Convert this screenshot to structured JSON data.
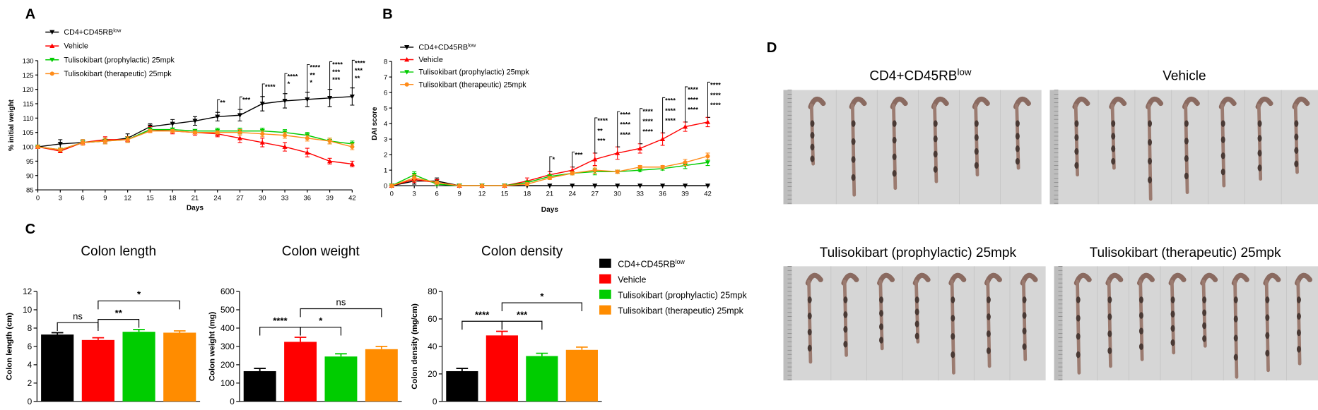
{
  "chart_data": [
    {
      "type": "line",
      "panel_label": "A",
      "ylabel": "% initial weight",
      "xlabel": "Days",
      "x": [
        0,
        3,
        6,
        9,
        12,
        15,
        18,
        21,
        24,
        27,
        30,
        33,
        36,
        39,
        42
      ],
      "xlim": [
        0,
        42
      ],
      "xticks": [
        0,
        3,
        6,
        9,
        12,
        15,
        18,
        21,
        24,
        27,
        30,
        33,
        36,
        39,
        42
      ],
      "ylim": [
        85,
        130
      ],
      "yticks": [
        85,
        90,
        95,
        100,
        105,
        110,
        115,
        120,
        125,
        130
      ],
      "series": [
        {
          "name": {
            "text": "CD4+CD45RB",
            "sup": "low"
          },
          "color": "#000000",
          "marker": "triangle-down",
          "values": [
            100,
            101,
            101.5,
            102,
            103,
            107,
            108,
            109,
            110.5,
            111,
            115,
            116,
            116.5,
            117,
            117.5
          ],
          "errors": [
            0,
            1.5,
            1,
            1,
            1.5,
            1,
            1.5,
            1.5,
            1.5,
            2,
            2.5,
            2.5,
            2.5,
            3,
            3
          ]
        },
        {
          "name": "Vehicle",
          "color": "#ff0000",
          "marker": "triangle-up",
          "values": [
            100,
            98.5,
            101.5,
            102.5,
            102.5,
            106,
            105.5,
            105,
            104.5,
            103,
            101.5,
            100,
            98,
            95,
            94
          ],
          "errors": [
            0,
            0.5,
            1,
            1,
            1,
            1,
            1,
            1,
            1,
            1.5,
            1.5,
            1.5,
            1.5,
            1,
            1
          ]
        },
        {
          "name": "Tulisokibart  (prophylactic) 25mpk",
          "color": "#00cc00",
          "marker": "triangle-down",
          "values": [
            100,
            99,
            101.5,
            102,
            102.5,
            106,
            106,
            105.5,
            105.5,
            105.5,
            105.5,
            105,
            104,
            102,
            101
          ],
          "errors": [
            0,
            0.5,
            1,
            1,
            1,
            0.5,
            0.5,
            0.5,
            1,
            1,
            1,
            1,
            1,
            1,
            1
          ]
        },
        {
          "name": "Tulisokibart (therapeutic) 25mpk",
          "color": "#ff8c1a",
          "marker": "circle",
          "values": [
            100,
            99,
            101.5,
            102,
            102.5,
            105.5,
            105.5,
            105,
            105,
            105,
            104.5,
            104,
            103,
            102,
            100
          ],
          "errors": [
            0,
            0.5,
            1,
            1,
            1,
            0.5,
            0.5,
            0.5,
            0.5,
            1,
            1,
            1,
            1,
            1,
            1
          ]
        }
      ],
      "significance_colors": [
        "#000000",
        "#00cc00",
        "#ff8c1a"
      ],
      "significance": [
        {
          "x": 24,
          "marks": [
            "**"
          ]
        },
        {
          "x": 27,
          "marks": [
            "***"
          ]
        },
        {
          "x": 30,
          "marks": [
            "****"
          ]
        },
        {
          "x": 33,
          "marks": [
            "****",
            "*"
          ]
        },
        {
          "x": 36,
          "marks": [
            "****",
            "**",
            "*"
          ]
        },
        {
          "x": 39,
          "marks": [
            "****",
            "***",
            "***"
          ]
        },
        {
          "x": 42,
          "marks": [
            "****",
            "***",
            "**"
          ]
        }
      ]
    },
    {
      "type": "line",
      "panel_label": "B",
      "ylabel": "DAI score",
      "xlabel": "Days",
      "x": [
        0,
        3,
        6,
        9,
        12,
        15,
        18,
        21,
        24,
        27,
        30,
        33,
        36,
        39,
        42
      ],
      "xlim": [
        0,
        42
      ],
      "xticks": [
        0,
        3,
        6,
        9,
        12,
        15,
        18,
        21,
        24,
        27,
        30,
        33,
        36,
        39,
        42
      ],
      "ylim": [
        0,
        8
      ],
      "yticks": [
        0,
        1,
        2,
        3,
        4,
        5,
        6,
        7,
        8
      ],
      "series": [
        {
          "name": {
            "text": "CD4+CD45RB",
            "sup": "low"
          },
          "color": "#000000",
          "marker": "triangle-down",
          "values": [
            0,
            0.3,
            0.3,
            0,
            0,
            0,
            0,
            0,
            0,
            0,
            0,
            0,
            0,
            0,
            0
          ],
          "errors": [
            0,
            0.2,
            0.2,
            0,
            0,
            0,
            0,
            0,
            0,
            0,
            0,
            0,
            0,
            0,
            0
          ]
        },
        {
          "name": "Vehicle",
          "color": "#ff0000",
          "marker": "triangle-up",
          "values": [
            0,
            0.4,
            0.2,
            0,
            0,
            0,
            0.3,
            0.7,
            1.0,
            1.7,
            2.1,
            2.4,
            3.0,
            3.8,
            4.1
          ],
          "errors": [
            0,
            0.2,
            0.2,
            0,
            0,
            0,
            0.2,
            0.2,
            0.2,
            0.4,
            0.4,
            0.3,
            0.4,
            0.3,
            0.3
          ]
        },
        {
          "name": "Tulisokibart (prophylactic) 25mpk",
          "color": "#00cc00",
          "marker": "triangle-down",
          "values": [
            0,
            0.7,
            0.1,
            0,
            0,
            0,
            0.2,
            0.6,
            0.8,
            0.9,
            0.9,
            1.0,
            1.1,
            1.3,
            1.5
          ],
          "errors": [
            0,
            0.2,
            0.1,
            0,
            0,
            0,
            0.1,
            0.1,
            0.1,
            0.2,
            0.1,
            0.1,
            0.1,
            0.2,
            0.2
          ]
        },
        {
          "name": "Tulisokibart (therapeutic) 25mpk",
          "color": "#ff8c1a",
          "marker": "circle",
          "values": [
            0,
            0.5,
            0.2,
            0,
            0,
            0,
            0.1,
            0.5,
            0.8,
            1.0,
            0.9,
            1.2,
            1.2,
            1.5,
            1.9
          ],
          "errors": [
            0,
            0.2,
            0.1,
            0,
            0,
            0,
            0.1,
            0.1,
            0.1,
            0.2,
            0.1,
            0.1,
            0.1,
            0.2,
            0.2
          ]
        }
      ],
      "significance_colors": [
        "#000000",
        "#00cc00",
        "#ff8c1a"
      ],
      "significance": [
        {
          "x": 21,
          "marks": [
            "*"
          ]
        },
        {
          "x": 24,
          "marks": [
            "***"
          ]
        },
        {
          "x": 27,
          "marks": [
            "****",
            "**",
            "***"
          ]
        },
        {
          "x": 30,
          "marks": [
            "****",
            "****",
            "****"
          ]
        },
        {
          "x": 33,
          "marks": [
            "****",
            "****",
            "****"
          ]
        },
        {
          "x": 36,
          "marks": [
            "****",
            "****",
            "****"
          ]
        },
        {
          "x": 39,
          "marks": [
            "****",
            "****",
            "****"
          ]
        },
        {
          "x": 42,
          "marks": [
            "****",
            "****",
            "****"
          ]
        }
      ]
    },
    {
      "type": "bar_group",
      "panel_label": "C",
      "categories": [
        {
          "text": "CD4+CD45RB",
          "sup": "low"
        },
        "Vehicle",
        "Tulisokibart (prophylactic) 25mpk",
        "Tulisokibart (therapeutic) 25mpk"
      ],
      "colors": [
        "#000000",
        "#ff0000",
        "#00cc00",
        "#ff8c00"
      ],
      "panels": [
        {
          "title": "Colon length",
          "ylabel": "Colon length (cm)",
          "values": [
            7.3,
            6.7,
            7.6,
            7.5
          ],
          "errors": [
            0.2,
            0.25,
            0.25,
            0.2
          ],
          "ylim": [
            0,
            12
          ],
          "yticks": [
            0,
            2,
            4,
            6,
            8,
            10,
            12
          ],
          "comparisons": [
            {
              "pair": [
                0,
                1
              ],
              "label": "ns"
            },
            {
              "pair": [
                1,
                2
              ],
              "label": "**"
            },
            {
              "pair": [
                1,
                3
              ],
              "label": "*"
            }
          ]
        },
        {
          "title": "Colon weight",
          "ylabel": "Colon weight (mg)",
          "values": [
            165,
            325,
            245,
            285
          ],
          "errors": [
            15,
            25,
            15,
            15
          ],
          "ylim": [
            0,
            600
          ],
          "yticks": [
            0,
            100,
            200,
            300,
            400,
            500,
            600
          ],
          "comparisons": [
            {
              "pair": [
                0,
                1
              ],
              "label": "****"
            },
            {
              "pair": [
                1,
                2
              ],
              "label": "*"
            },
            {
              "pair": [
                1,
                3
              ],
              "label": "ns"
            }
          ]
        },
        {
          "title": "Colon density",
          "ylabel": "Colon density (mg/cm)",
          "values": [
            22,
            48,
            33,
            37.5
          ],
          "errors": [
            2,
            3,
            2,
            2
          ],
          "ylim": [
            0,
            80
          ],
          "yticks": [
            0,
            20,
            40,
            60,
            80
          ],
          "comparisons": [
            {
              "pair": [
                0,
                1
              ],
              "label": "****"
            },
            {
              "pair": [
                1,
                2
              ],
              "label": "***"
            },
            {
              "pair": [
                1,
                3
              ],
              "label": "*"
            }
          ]
        }
      ]
    }
  ],
  "photo_panel": {
    "label": "D",
    "titles": [
      {
        "text": "CD4+CD45RB",
        "sup": "low"
      },
      "Vehicle",
      "Tulisokibart (prophylactic) 25mpk",
      "Tulisokibart (therapeutic) 25mpk"
    ]
  }
}
